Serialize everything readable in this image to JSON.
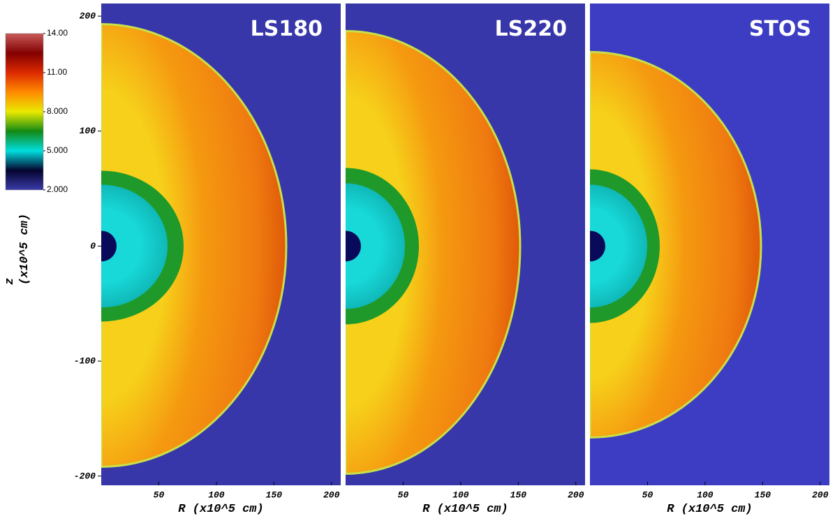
{
  "chart_data": [
    {
      "type": "image",
      "title": "LS180",
      "xlabel": "R (x10^5 cm)",
      "ylabel": [
        "z",
        "(x10^5 cm)"
      ],
      "xlim": [
        0,
        208
      ],
      "ylim": [
        -208,
        211
      ],
      "xticks": [
        50,
        100,
        150,
        200
      ],
      "yticks": [
        200,
        100,
        0,
        -100,
        -200
      ],
      "background": "#3737a9",
      "colorbar": {
        "lim": [
          2,
          14
        ],
        "colors": [
          "#3a3aa8",
          "#04042e",
          "#00dede",
          "#138a13",
          "#eaea00",
          "#ff8a00",
          "#dc2a00",
          "#820000",
          "#c85a5a"
        ],
        "ticks": [
          {
            "value": 14,
            "label": "14.00"
          },
          {
            "value": 11,
            "label": "11.00"
          },
          {
            "value": 8,
            "label": "8.000"
          },
          {
            "value": 5,
            "label": "5.000"
          },
          {
            "value": 2,
            "label": "2.000"
          }
        ]
      }
    },
    {
      "type": "image",
      "title": "LS220",
      "xlabel": "R (x10^5 cm)",
      "xlim": [
        0,
        208
      ],
      "ylim": [
        -208,
        211
      ],
      "xticks": [
        50,
        100,
        150,
        200
      ],
      "background": "#3737a9"
    },
    {
      "type": "image",
      "title": "STOS",
      "xlabel": "R (x10^5 cm)",
      "xlim": [
        0,
        208
      ],
      "ylim": [
        -208,
        211
      ],
      "xticks": [
        50,
        100,
        150,
        200
      ],
      "background": "#3d3dc4"
    }
  ]
}
